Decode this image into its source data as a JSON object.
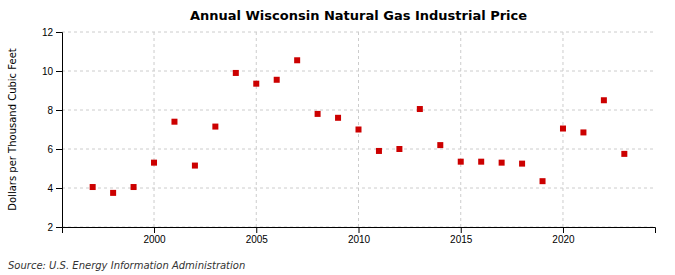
{
  "chart_data": {
    "type": "scatter",
    "title": "Annual Wisconsin Natural Gas Industrial Price",
    "ylabel": "Dollars per Thousand Cubic Feet",
    "source": "Source: U.S. Energy Information Administration",
    "x": [
      1997,
      1998,
      1999,
      2000,
      2001,
      2002,
      2003,
      2004,
      2005,
      2006,
      2007,
      2008,
      2009,
      2010,
      2011,
      2012,
      2013,
      2014,
      2015,
      2016,
      2017,
      2018,
      2019,
      2020,
      2021,
      2022,
      2023
    ],
    "values": [
      4.05,
      3.75,
      4.05,
      5.3,
      7.4,
      5.15,
      7.15,
      9.9,
      9.35,
      9.55,
      10.55,
      7.8,
      7.6,
      7.0,
      5.9,
      6.0,
      8.05,
      6.2,
      5.35,
      5.35,
      5.3,
      5.25,
      4.35,
      7.05,
      6.85,
      8.5,
      5.75
    ],
    "color": "#cc0000",
    "marker": "square",
    "xlim": [
      1995.5,
      2024.5
    ],
    "xticks": [
      2000,
      2005,
      2010,
      2015,
      2020
    ],
    "ylim": [
      2,
      12
    ],
    "yticks": [
      2,
      4,
      6,
      8,
      10,
      12
    ],
    "grid": true
  }
}
